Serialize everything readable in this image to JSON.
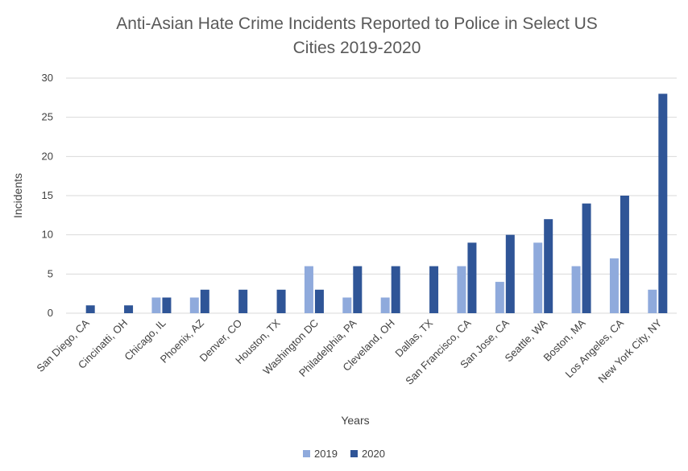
{
  "chart_data": {
    "type": "bar",
    "title_lines": [
      "Anti-Asian Hate Crime Incidents Reported to Police in Select US",
      "Cities 2019-2020"
    ],
    "xlabel": "Years",
    "ylabel": "Incidents",
    "ylim": [
      0,
      30
    ],
    "yticks": [
      0,
      5,
      10,
      15,
      20,
      25,
      30
    ],
    "grid": true,
    "legend_position": "bottom",
    "categories": [
      "San Diego, CA",
      "Cincinatti, OH",
      "Chicago, IL",
      "Phoenix, AZ",
      "Denver, CO",
      "Houston, TX",
      "Washington DC",
      "Philadelphia, PA",
      "Cleveland, OH",
      "Dallas, TX",
      "San Francisco, CA",
      "San Jose, CA",
      "Seattle, WA",
      "Boston, MA",
      "Los Angeles, CA",
      "New York City, NY"
    ],
    "series": [
      {
        "name": "2019",
        "color": "#8faadc",
        "values": [
          0,
          0,
          2,
          2,
          0,
          0,
          6,
          2,
          2,
          0,
          6,
          4,
          9,
          6,
          7,
          3
        ]
      },
      {
        "name": "2020",
        "color": "#2f5597",
        "values": [
          1,
          1,
          2,
          3,
          3,
          3,
          3,
          6,
          6,
          6,
          9,
          10,
          12,
          14,
          15,
          28
        ]
      }
    ]
  }
}
